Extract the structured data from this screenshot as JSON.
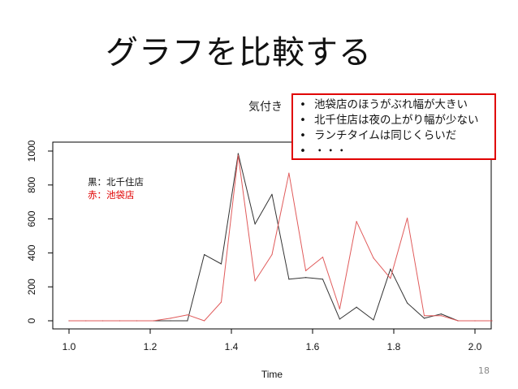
{
  "slide": {
    "title": "グラフを比較する",
    "page_number": "18"
  },
  "notes": {
    "label": "気付き",
    "bullet": "•",
    "items": [
      "池袋店のほうがぶれ幅が大きい",
      "北千住店は夜の上がり幅が少ない",
      "ランチタイムは同じくらいだ",
      "・・・"
    ]
  },
  "chart_data": {
    "type": "line",
    "xlabel": "Time",
    "ylabel": "",
    "xlim": [
      1.0,
      2.04
    ],
    "ylim": [
      0,
      1000
    ],
    "x_ticks": [
      "1.0",
      "1.2",
      "1.4",
      "1.6",
      "1.8",
      "2.0"
    ],
    "y_ticks": [
      "0",
      "200",
      "400",
      "600",
      "800",
      "1000"
    ],
    "grid": false,
    "legend_position": "top-left",
    "x": [
      1.0,
      1.0417,
      1.0833,
      1.125,
      1.1667,
      1.2083,
      1.25,
      1.2917,
      1.3333,
      1.375,
      1.4167,
      1.4583,
      1.5,
      1.5417,
      1.5833,
      1.625,
      1.6667,
      1.7083,
      1.75,
      1.7917,
      1.8333,
      1.875,
      1.9167,
      1.9583,
      2.0,
      2.0417
    ],
    "series": [
      {
        "name": "黒：北千住店",
        "color": "#333333",
        "values": [
          0,
          0,
          0,
          0,
          0,
          0,
          0,
          0,
          390,
          335,
          985,
          570,
          745,
          245,
          255,
          245,
          10,
          80,
          5,
          305,
          105,
          15,
          40,
          0,
          0,
          0
        ]
      },
      {
        "name": "赤：池袋店",
        "color": "#e05a5a",
        "values": [
          0,
          0,
          0,
          0,
          0,
          0,
          15,
          35,
          0,
          110,
          975,
          235,
          390,
          870,
          295,
          375,
          70,
          585,
          370,
          250,
          605,
          30,
          30,
          0,
          0,
          0
        ]
      }
    ]
  }
}
